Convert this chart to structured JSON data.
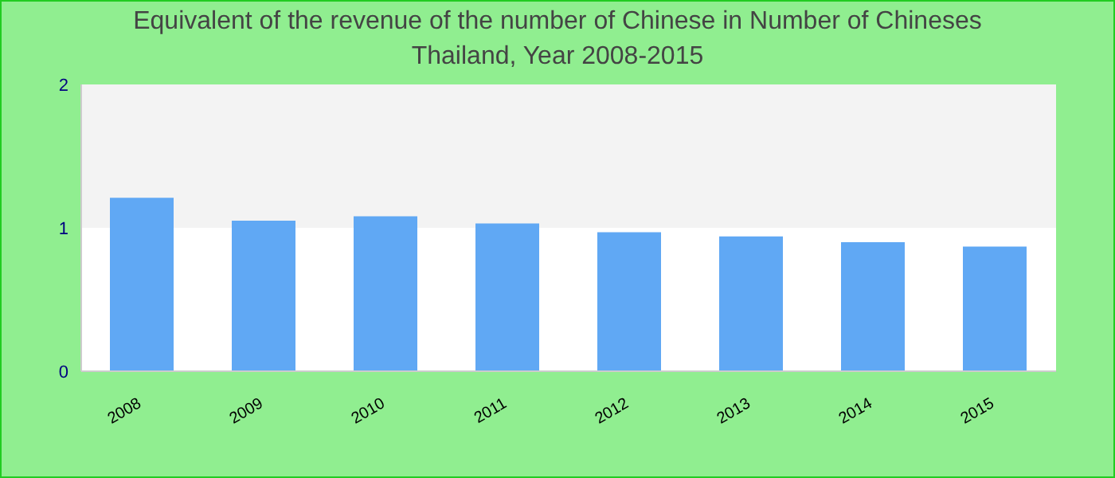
{
  "chart_data": {
    "type": "bar",
    "title": "Equivalent of the revenue of the number of Chinese  in Number of Chineses\nThailand, Year 2008-2015",
    "categories": [
      "2008",
      "2009",
      "2010",
      "2011",
      "2012",
      "2013",
      "2014",
      "2015"
    ],
    "values": [
      1.21,
      1.05,
      1.08,
      1.03,
      0.97,
      0.94,
      0.9,
      0.87
    ],
    "color": "#60a8f4",
    "ylim": [
      0,
      2
    ],
    "yticks": [
      0,
      1,
      2
    ],
    "bands": [
      {
        "axis": "y",
        "from": 1,
        "to": 2,
        "color": "#f3f3f3"
      }
    ],
    "legend": false
  }
}
